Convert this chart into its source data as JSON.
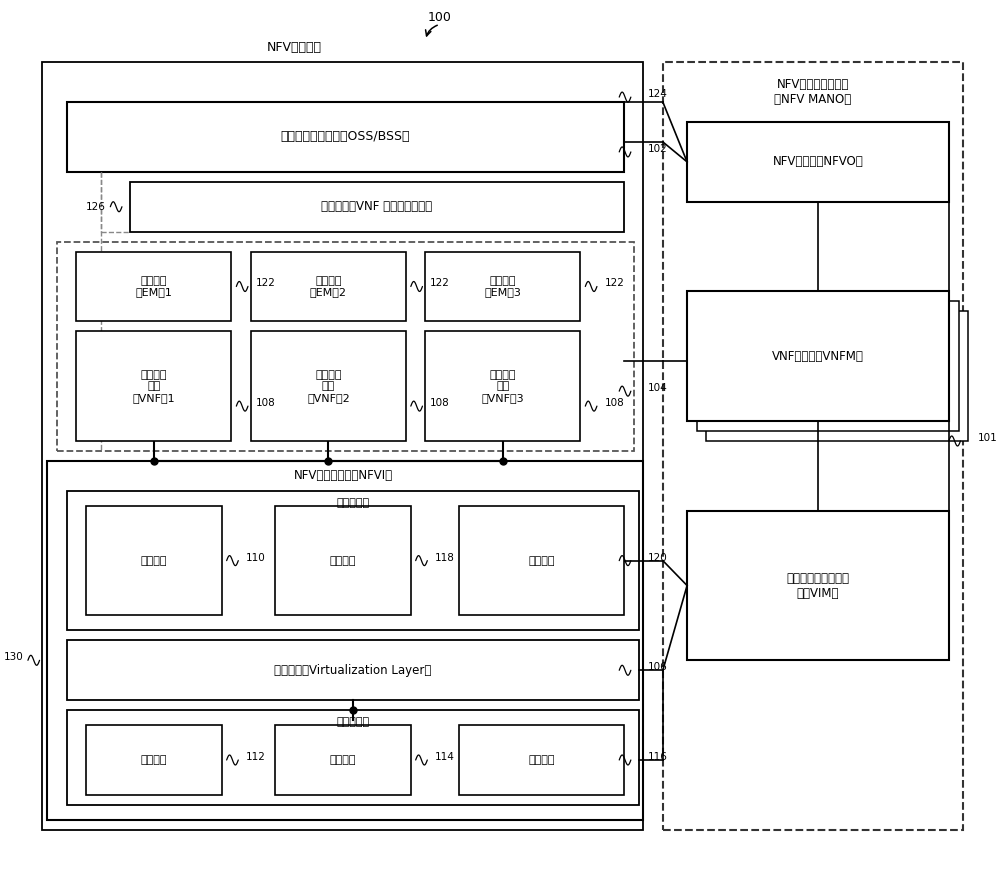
{
  "label_nfv_arch": "NFV架构系统",
  "label_nfv_mano_title": "NFV管理和编排系统\n（NFV MANO）",
  "label_oss_bss": "业务支持管理系统（OSS/BSS）",
  "label_net_service": "网络服务、VNF 和基础设施描述",
  "label_em1": "网元管理\n（EM）1",
  "label_em2": "网元管理\n（EM）2",
  "label_em3": "网元管理\n（EM）3",
  "label_vnf1": "虚拟网络\n功能\n（VNF）1",
  "label_vnf2": "虚拟网络\n功能\n（VNF）2",
  "label_vnf3": "虚拟网络\n功能\n（VNF）3",
  "label_nfvi": "NFV基础设施层（NFVI）",
  "label_virt_res": "虚拟资源层",
  "label_vcomp": "虚拟计算",
  "label_vstor": "虚拟存储",
  "label_vnet": "虚拟网络",
  "label_virt_layer": "虚拟化层（Virtualization Layer）",
  "label_hw_res": "硬件资源层",
  "label_hw_comp": "计算硬件",
  "label_hw_stor": "存储硬件",
  "label_hw_net": "网络硬件",
  "label_nfvo": "NFV编排器（NFVO）",
  "label_vnfm": "VNF管理器（VNFM）",
  "label_vim": "虚拟化基础设施管理\n器（VIM）",
  "num_100": "100",
  "num_101": "101",
  "num_102": "102",
  "num_104": "104",
  "num_106": "106",
  "num_108": "108",
  "num_110": "110",
  "num_112": "112",
  "num_114": "114",
  "num_116": "116",
  "num_118": "118",
  "num_120": "120",
  "num_122": "122",
  "num_124": "124",
  "num_126": "126",
  "num_130": "130",
  "bg_color": "#ffffff"
}
